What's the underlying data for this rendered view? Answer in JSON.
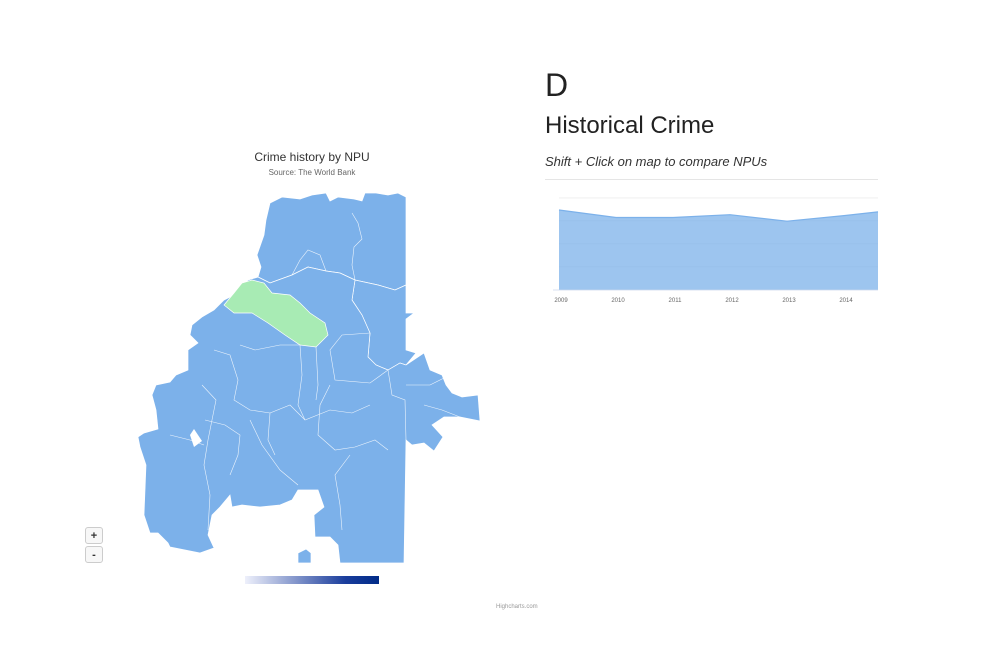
{
  "map": {
    "title": "Crime history by NPU",
    "subtitle": "Source: The World Bank",
    "zoom_in_label": "+",
    "zoom_out_label": "-",
    "credits": "Highcharts.com",
    "region_color": "#7cb1ea",
    "selected_color": "#a8ebb4",
    "border_color": "#ffffff"
  },
  "detail": {
    "npu": "D",
    "heading": "Historical Crime",
    "hint": "Shift + Click on map to compare NPUs"
  },
  "chart_data": {
    "type": "area",
    "categories": [
      "2009",
      "2010",
      "2011",
      "2012",
      "2013",
      "2014"
    ],
    "series": [
      {
        "values": [
          0.86,
          0.78,
          0.78,
          0.81,
          0.74,
          0.8
        ]
      }
    ],
    "ylim": [
      0,
      1
    ],
    "fill_color": "#7cb1ea",
    "extends_right": true,
    "grid": true
  }
}
